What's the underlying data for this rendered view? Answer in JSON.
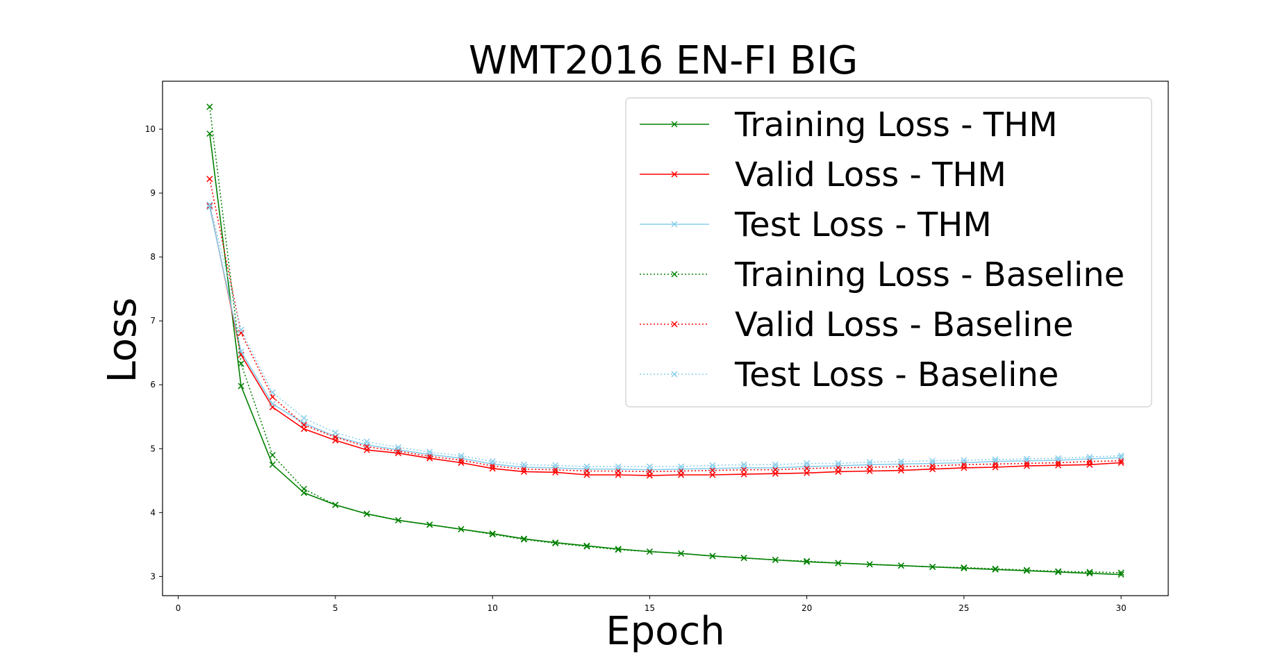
{
  "chart_data": {
    "type": "line",
    "title": "WMT2016 EN-FI BIG",
    "xlabel": "Epoch",
    "ylabel": "Loss",
    "xlim": [
      -0.5,
      31.5
    ],
    "ylim": [
      2.7,
      10.75
    ],
    "xticks": [
      0,
      5,
      10,
      15,
      20,
      25,
      30
    ],
    "yticks": [
      3,
      4,
      5,
      6,
      7,
      8,
      9,
      10
    ],
    "grid": false,
    "legend_position": "top-right",
    "x": [
      1,
      2,
      3,
      4,
      5,
      6,
      7,
      8,
      9,
      10,
      11,
      12,
      13,
      14,
      15,
      16,
      17,
      18,
      19,
      20,
      21,
      22,
      23,
      24,
      25,
      26,
      27,
      28,
      29,
      30
    ],
    "series": [
      {
        "name": "Training Loss - THM",
        "color": "#008000",
        "style": "solid",
        "values": [
          9.93,
          5.98,
          4.75,
          4.31,
          4.12,
          3.98,
          3.88,
          3.81,
          3.74,
          3.67,
          3.59,
          3.53,
          3.48,
          3.43,
          3.39,
          3.36,
          3.32,
          3.29,
          3.26,
          3.23,
          3.21,
          3.19,
          3.17,
          3.15,
          3.13,
          3.11,
          3.09,
          3.07,
          3.05,
          3.03
        ]
      },
      {
        "name": "Valid Loss - THM",
        "color": "#ff0000",
        "style": "solid",
        "values": [
          8.8,
          6.47,
          5.65,
          5.31,
          5.13,
          4.98,
          4.93,
          4.85,
          4.78,
          4.69,
          4.64,
          4.63,
          4.59,
          4.59,
          4.58,
          4.59,
          4.59,
          4.6,
          4.61,
          4.62,
          4.64,
          4.65,
          4.66,
          4.68,
          4.7,
          4.71,
          4.73,
          4.74,
          4.75,
          4.78
        ]
      },
      {
        "name": "Test Loss - THM",
        "color": "#87ceeb",
        "style": "solid",
        "values": [
          8.78,
          6.52,
          5.7,
          5.4,
          5.19,
          5.06,
          4.98,
          4.91,
          4.85,
          4.76,
          4.71,
          4.7,
          4.68,
          4.68,
          4.67,
          4.68,
          4.69,
          4.7,
          4.7,
          4.72,
          4.73,
          4.75,
          4.76,
          4.77,
          4.78,
          4.8,
          4.81,
          4.82,
          4.84,
          4.86
        ]
      },
      {
        "name": "Training Loss - Baseline",
        "color": "#008000",
        "style": "dotted",
        "values": [
          10.35,
          6.33,
          4.9,
          4.37,
          4.12,
          3.98,
          3.88,
          3.81,
          3.74,
          3.66,
          3.58,
          3.52,
          3.47,
          3.42,
          3.39,
          3.36,
          3.32,
          3.29,
          3.26,
          3.24,
          3.21,
          3.19,
          3.17,
          3.15,
          3.14,
          3.12,
          3.1,
          3.08,
          3.07,
          3.06
        ]
      },
      {
        "name": "Valid Loss - Baseline",
        "color": "#ff0000",
        "style": "dotted",
        "values": [
          9.22,
          6.81,
          5.81,
          5.37,
          5.18,
          5.03,
          4.96,
          4.88,
          4.82,
          4.73,
          4.68,
          4.67,
          4.65,
          4.65,
          4.64,
          4.65,
          4.66,
          4.67,
          4.67,
          4.69,
          4.7,
          4.71,
          4.72,
          4.73,
          4.75,
          4.76,
          4.77,
          4.78,
          4.8,
          4.81
        ]
      },
      {
        "name": "Test Loss - Baseline",
        "color": "#87ceeb",
        "style": "dotted",
        "values": [
          8.82,
          6.86,
          5.88,
          5.48,
          5.25,
          5.11,
          5.02,
          4.95,
          4.89,
          4.8,
          4.75,
          4.74,
          4.72,
          4.72,
          4.72,
          4.72,
          4.74,
          4.75,
          4.75,
          4.77,
          4.77,
          4.79,
          4.8,
          4.81,
          4.82,
          4.83,
          4.84,
          4.85,
          4.87,
          4.89
        ]
      }
    ]
  }
}
